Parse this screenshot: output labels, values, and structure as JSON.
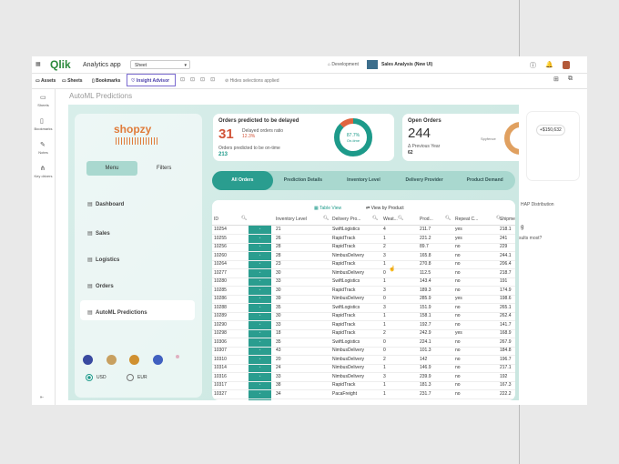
{
  "topbar": {
    "logo": "Qlik",
    "app": "Analytics app",
    "sheet": "Sheet",
    "mode": "Development",
    "document": "Sales Analysis (New UI)"
  },
  "toolbar": {
    "items": [
      "Assets",
      "Sheets",
      "Bookmarks",
      "Insight Advisor"
    ],
    "selections": "Hides selections applied"
  },
  "rail": [
    "Sheets",
    "Bookmarks",
    "Notes",
    "Key drivers"
  ],
  "page_title": "AutoML Predictions",
  "sidebar": {
    "brand": "shopzy",
    "menu": "Menu",
    "filters": "Filters",
    "nav": [
      "Dashboard",
      "Sales",
      "Logistics",
      "Orders",
      "AutoML Predictions"
    ],
    "currencies": [
      "USD",
      "EUR"
    ]
  },
  "kpi_delayed": {
    "title": "Orders predicted to be delayed",
    "value": "31",
    "ratio_label": "Delayed orders ratio",
    "ratio": "12.3%",
    "ontime_label": "Orders predicted to be on-time",
    "ontime": "213",
    "gauge_value": "87.7%",
    "gauge_label": "On-time"
  },
  "kpi_open": {
    "title": "Open Orders",
    "value": "244",
    "prev_label": "Δ Previous Year",
    "prev": "62",
    "gauge_label": "Spyfence"
  },
  "tabs": [
    "All Orders",
    "Prediction Details",
    "Inventory Level",
    "Delivery Provider",
    "Product Demand"
  ],
  "table": {
    "views": [
      "Table View",
      "View by Product"
    ],
    "columns": [
      "ID",
      "Inventory Level",
      "Delivery Pro...",
      "Weat...",
      "Prod...",
      "Repeat C...",
      "Shipme..."
    ],
    "rows": [
      [
        "10254",
        "21",
        "SwiftLogistics",
        "4",
        "211.7",
        "yes",
        "218.1"
      ],
      [
        "10255",
        "26",
        "RapidTrack",
        "1",
        "221.2",
        "yes",
        "241"
      ],
      [
        "10256",
        "28",
        "RapidTrack",
        "2",
        "89.7",
        "no",
        "229"
      ],
      [
        "10260",
        "28",
        "NimbusDelivery",
        "3",
        "165.8",
        "no",
        "244.1"
      ],
      [
        "10264",
        "23",
        "RapidTrack",
        "1",
        "270.8",
        "no",
        "206.4"
      ],
      [
        "10277",
        "30",
        "NimbusDelivery",
        "0",
        "112.5",
        "no",
        "218.7"
      ],
      [
        "10280",
        "33",
        "SwiftLogistics",
        "1",
        "143.4",
        "no",
        "191"
      ],
      [
        "10285",
        "30",
        "RapidTrack",
        "3",
        "189.3",
        "no",
        "174.9"
      ],
      [
        "10286",
        "39",
        "NimbusDelivery",
        "0",
        "285.9",
        "yes",
        "198.6"
      ],
      [
        "10288",
        "35",
        "SwiftLogistics",
        "3",
        "151.9",
        "no",
        "265.1"
      ],
      [
        "10289",
        "30",
        "RapidTrack",
        "1",
        "158.1",
        "no",
        "262.4"
      ],
      [
        "10290",
        "33",
        "RapidTrack",
        "1",
        "192.7",
        "no",
        "141.7"
      ],
      [
        "10298",
        "18",
        "RapidTrack",
        "2",
        "242.9",
        "yes",
        "168.9"
      ],
      [
        "10306",
        "35",
        "SwiftLogistics",
        "0",
        "224.1",
        "no",
        "267.9"
      ],
      [
        "10307",
        "43",
        "NimbusDelivery",
        "0",
        "101.3",
        "no",
        "184.8"
      ],
      [
        "10310",
        "20",
        "NimbusDelivery",
        "2",
        "142",
        "no",
        "196.7"
      ],
      [
        "10314",
        "24",
        "NimbusDelivery",
        "1",
        "146.9",
        "no",
        "217.1"
      ],
      [
        "10316",
        "33",
        "NimbusDelivery",
        "3",
        "239.9",
        "no",
        "192"
      ],
      [
        "10317",
        "38",
        "RapidTrack",
        "1",
        "181.3",
        "no",
        "167.3"
      ],
      [
        "10327",
        "34",
        "PacaFreight",
        "1",
        "231.7",
        "no",
        "222.2"
      ]
    ]
  },
  "side_panel": {
    "amount": "+$150,632",
    "heading": "HAP Distribution",
    "fragment": "g",
    "question": "sults most?"
  }
}
